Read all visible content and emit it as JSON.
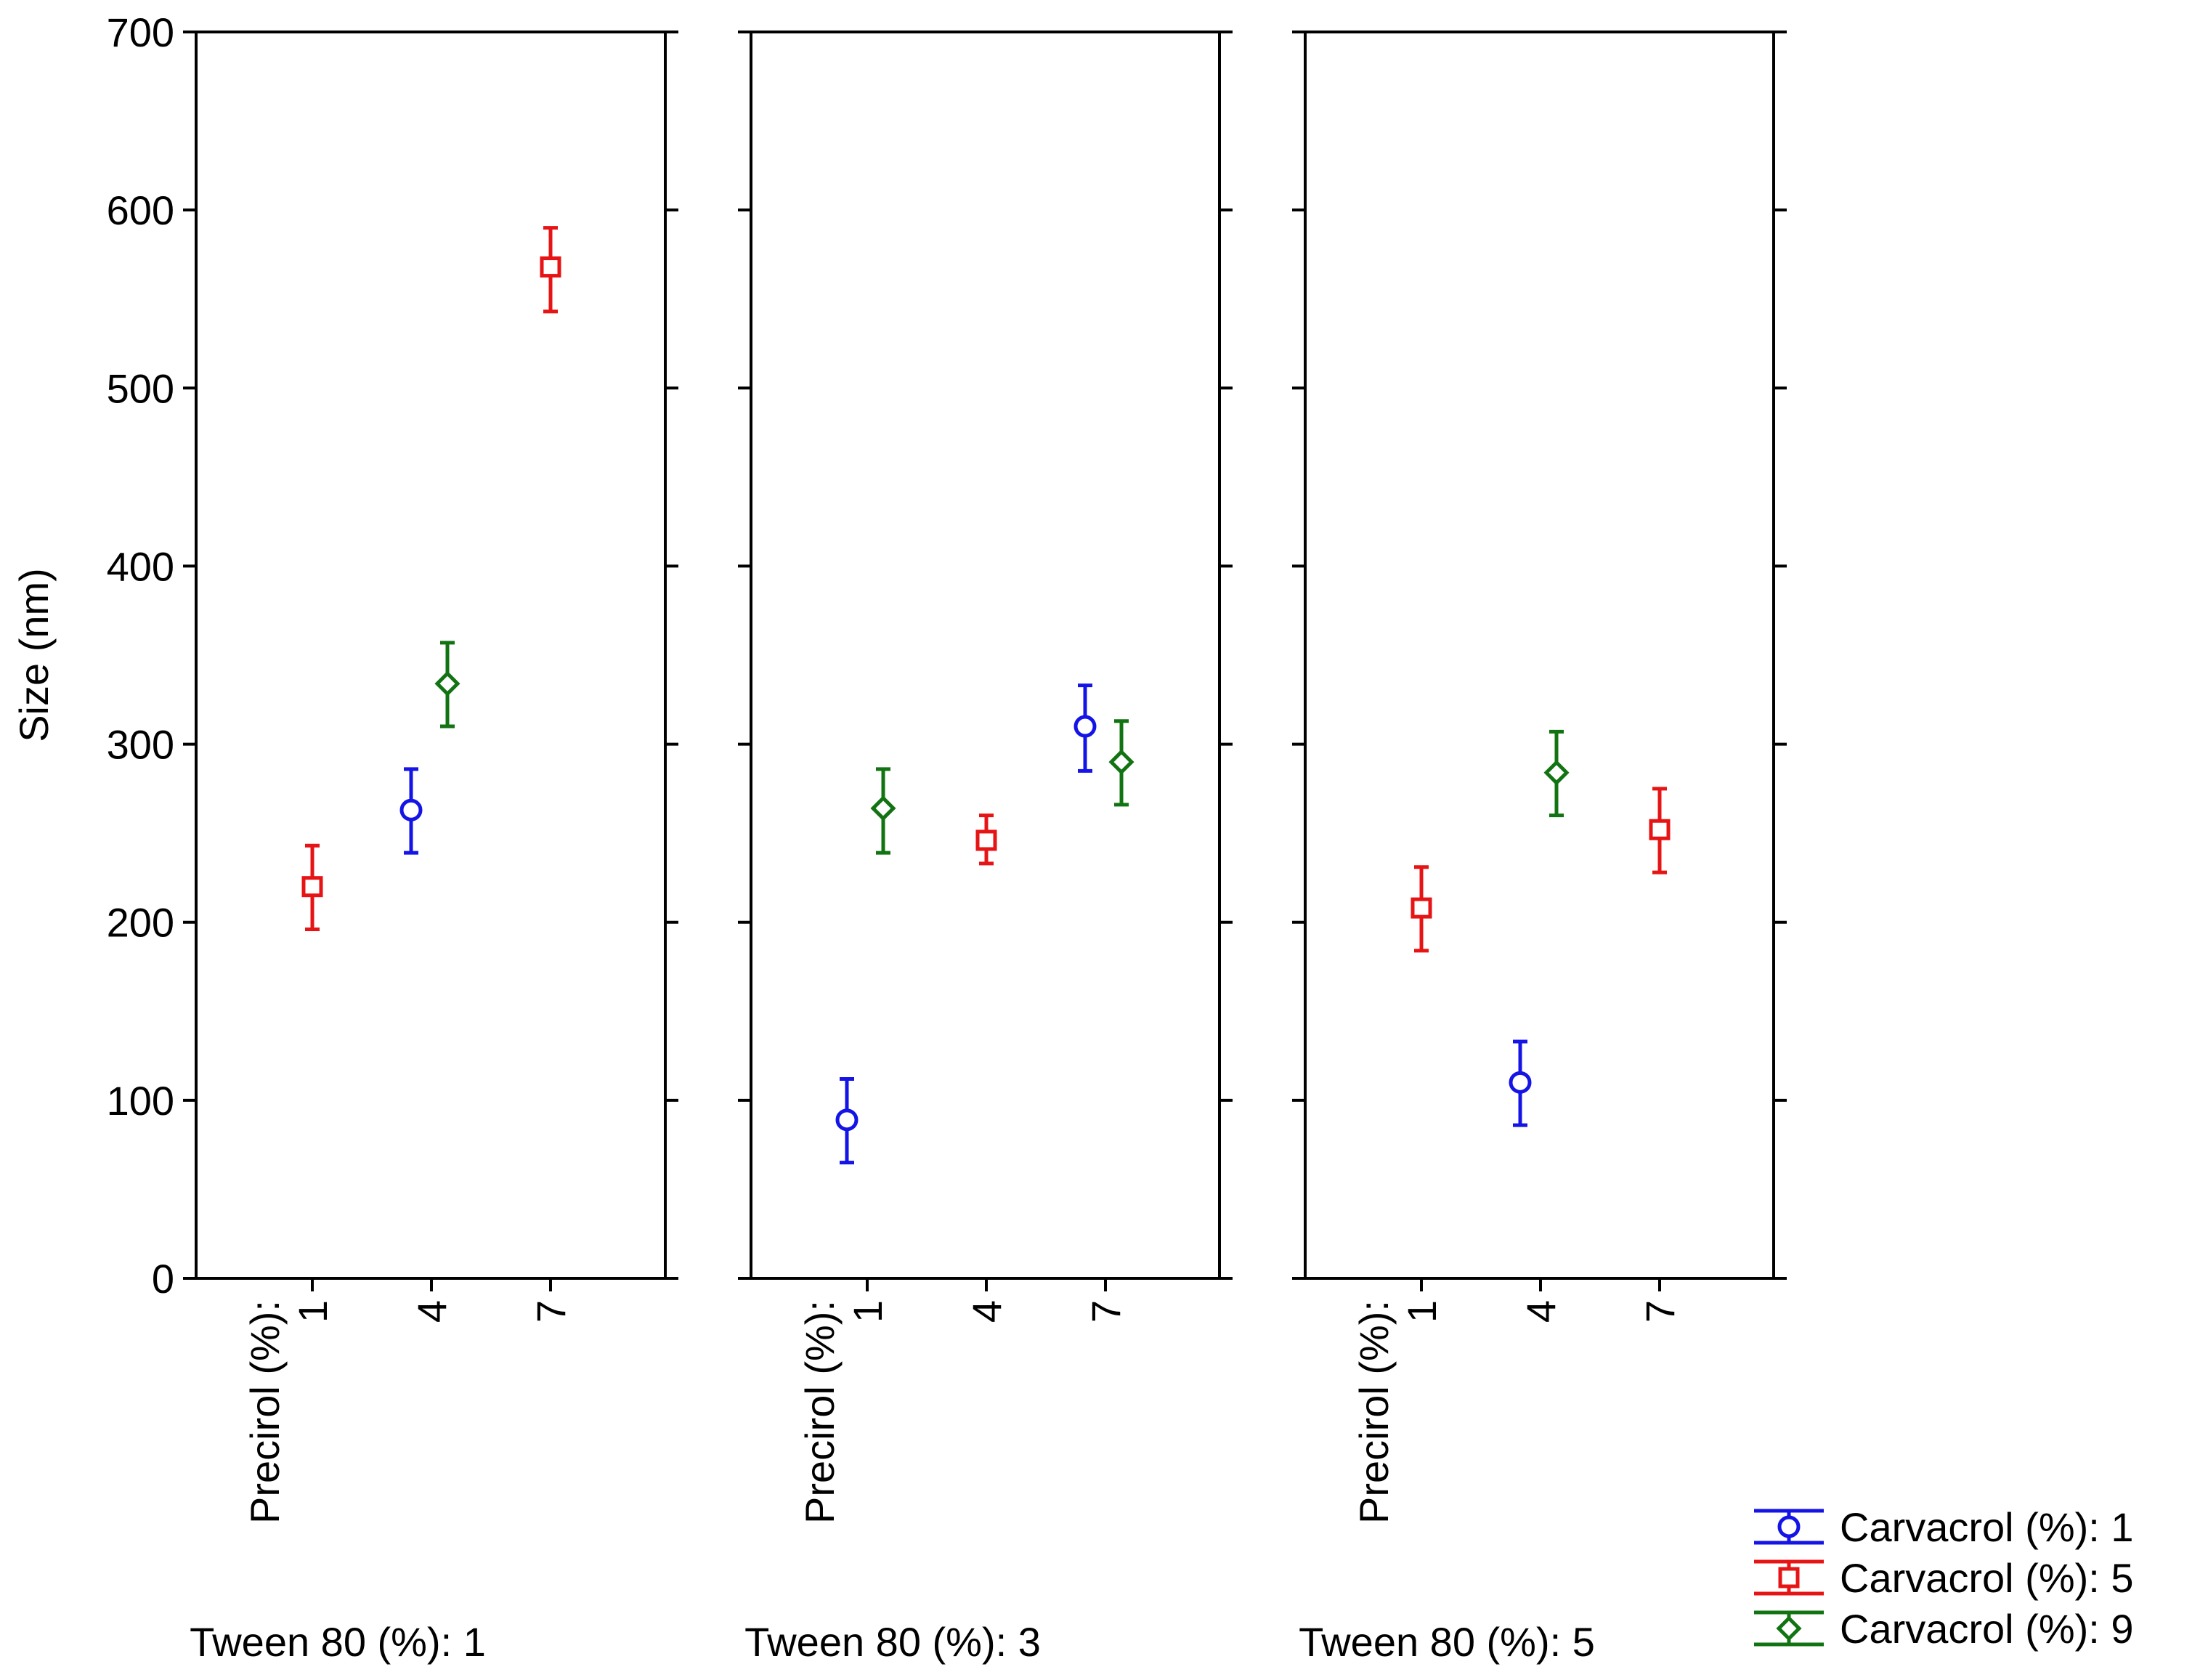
{
  "chart_data": {
    "type": "scatter",
    "title": "",
    "ylabel": "Size (nm)",
    "ylim": [
      0,
      700
    ],
    "yticks": [
      0,
      100,
      200,
      300,
      400,
      500,
      600,
      700
    ],
    "x_factor_label": "Precirol (%):",
    "x_categories": [
      "1",
      "4",
      "7"
    ],
    "panels": [
      {
        "label": "Tween 80 (%): 1",
        "points": [
          {
            "series": "Carvacrol (%): 5",
            "x": "1",
            "y": 220,
            "err_low": 196,
            "err_high": 243
          },
          {
            "series": "Carvacrol (%): 1",
            "x": "4",
            "y": 263,
            "err_low": 239,
            "err_high": 286
          },
          {
            "series": "Carvacrol (%): 9",
            "x": "4",
            "y": 334,
            "err_low": 310,
            "err_high": 357
          },
          {
            "series": "Carvacrol (%): 5",
            "x": "7",
            "y": 568,
            "err_low": 543,
            "err_high": 590
          }
        ]
      },
      {
        "label": "Tween 80 (%): 3",
        "points": [
          {
            "series": "Carvacrol (%): 1",
            "x": "1",
            "y": 89,
            "err_low": 65,
            "err_high": 112
          },
          {
            "series": "Carvacrol (%): 9",
            "x": "1",
            "y": 264,
            "err_low": 239,
            "err_high": 286
          },
          {
            "series": "Carvacrol (%): 5",
            "x": "4",
            "y": 246,
            "err_low": 233,
            "err_high": 260
          },
          {
            "series": "Carvacrol (%): 1",
            "x": "7",
            "y": 310,
            "err_low": 285,
            "err_high": 333
          },
          {
            "series": "Carvacrol (%): 9",
            "x": "7",
            "y": 290,
            "err_low": 266,
            "err_high": 313
          }
        ]
      },
      {
        "label": "Tween 80 (%): 5",
        "points": [
          {
            "series": "Carvacrol (%): 5",
            "x": "1",
            "y": 208,
            "err_low": 184,
            "err_high": 231
          },
          {
            "series": "Carvacrol (%): 1",
            "x": "4",
            "y": 110,
            "err_low": 86,
            "err_high": 133
          },
          {
            "series": "Carvacrol (%): 9",
            "x": "4",
            "y": 284,
            "err_low": 260,
            "err_high": 307
          },
          {
            "series": "Carvacrol (%): 5",
            "x": "7",
            "y": 252,
            "err_low": 228,
            "err_high": 275
          }
        ]
      }
    ],
    "series": [
      {
        "name": "Carvacrol (%): 1",
        "color": "#1414e6",
        "marker": "circle"
      },
      {
        "name": "Carvacrol (%): 5",
        "color": "#e61414",
        "marker": "square"
      },
      {
        "name": "Carvacrol (%): 9",
        "color": "#127312",
        "marker": "diamond"
      }
    ],
    "legend_position": "bottom-right"
  }
}
